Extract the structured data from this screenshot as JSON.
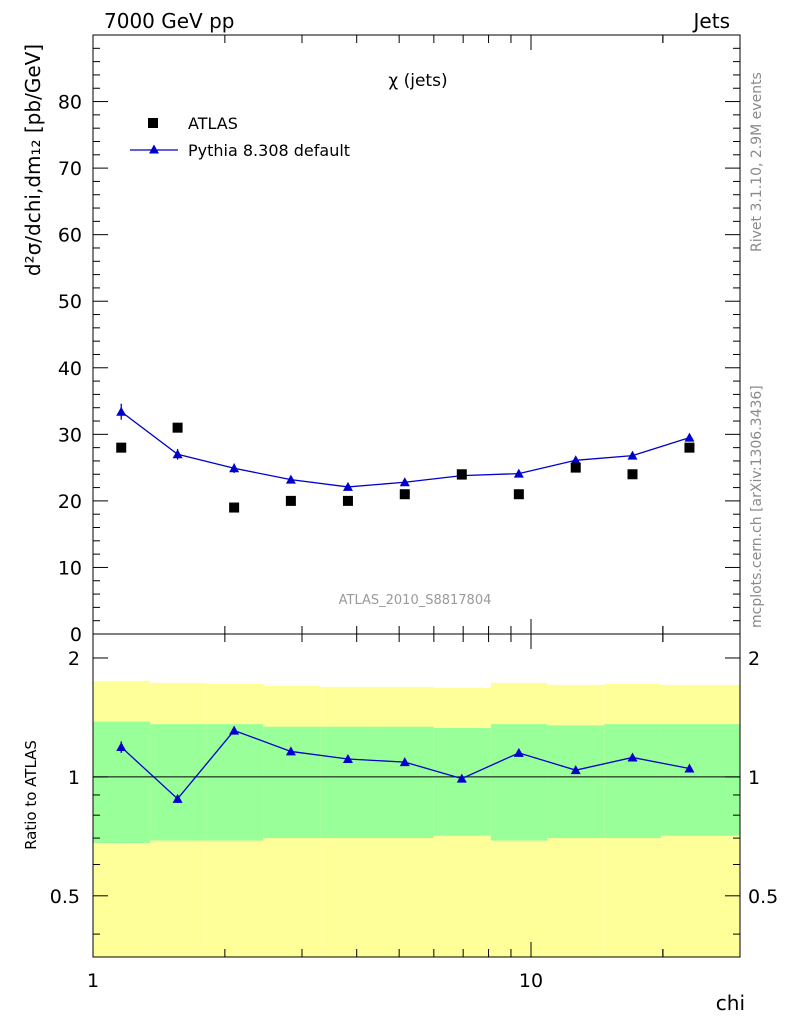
{
  "header": {
    "left": "7000 GeV pp",
    "right": "Jets"
  },
  "side_text": {
    "top": "Rivet 3.1.10,  2.9M events",
    "bottom": "mcplots.cern.ch [arXiv:1306.3436]"
  },
  "watermark": "ATLAS_2010_S8817804",
  "plot_title": "χ (jets)",
  "ylabel_main": "d²σ/dchi,dm₁₂ [pb/GeV]",
  "ylabel_ratio": "Ratio to ATLAS",
  "xlabel": "chi",
  "legend": [
    {
      "label": "ATLAS",
      "marker": "square",
      "color": "#000000"
    },
    {
      "label": "Pythia 8.308 default",
      "marker": "triangle",
      "color": "#0000cc"
    }
  ],
  "colors": {
    "data": "#000000",
    "mc": "#0000cc",
    "band_inner": "#99ff99",
    "band_outer": "#ffff99"
  },
  "chart_data": [
    {
      "type": "scatter",
      "panel": "main",
      "x_scale": "log",
      "xlim": [
        1,
        30
      ],
      "ylim": [
        0,
        90
      ],
      "x_ticks": [
        "1",
        "10"
      ],
      "y_ticks": [
        "0",
        "10",
        "20",
        "30",
        "40",
        "50",
        "60",
        "70",
        "80"
      ],
      "x": [
        1.16,
        1.56,
        2.1,
        2.83,
        3.82,
        5.15,
        6.95,
        9.38,
        12.65,
        17.05,
        23.0
      ],
      "series": [
        {
          "name": "ATLAS",
          "values": [
            28,
            31,
            19,
            20,
            20,
            21,
            24,
            21,
            25,
            24,
            28
          ]
        },
        {
          "name": "Pythia 8.308 default",
          "values": [
            33.4,
            27.0,
            24.9,
            23.2,
            22.1,
            22.8,
            23.8,
            24.1,
            26.1,
            26.8,
            29.5
          ],
          "errors": [
            1.2,
            0.8,
            0.7,
            0.5,
            0.4,
            0.4,
            0.4,
            0.4,
            0.4,
            0.4,
            0.5
          ]
        }
      ]
    },
    {
      "type": "line",
      "panel": "ratio",
      "x_scale": "log",
      "xlim": [
        1,
        30
      ],
      "ylim": [
        0.35,
        2.3
      ],
      "y_ticks": [
        "0.5",
        "1",
        "2"
      ],
      "x": [
        1.16,
        1.56,
        2.1,
        2.83,
        3.82,
        5.15,
        6.95,
        9.38,
        12.65,
        17.05,
        23.0
      ],
      "bin_edges": [
        1.0,
        1.35,
        1.82,
        2.45,
        3.3,
        4.45,
        6.0,
        8.1,
        10.9,
        14.7,
        19.8,
        30.0
      ],
      "series": [
        {
          "name": "Pythia 8.308 default",
          "values": [
            1.19,
            0.88,
            1.31,
            1.16,
            1.11,
            1.09,
            0.99,
            1.15,
            1.04,
            1.12,
            1.05
          ],
          "errors": [
            0.04,
            0.02,
            0.03,
            0.02,
            0.01,
            0.01,
            0.01,
            0.01,
            0.01,
            0.01,
            0.01
          ]
        }
      ],
      "band_inner": {
        "lo": [
          0.68,
          0.69,
          0.69,
          0.7,
          0.7,
          0.7,
          0.71,
          0.69,
          0.7,
          0.7,
          0.71
        ],
        "hi": [
          1.38,
          1.36,
          1.36,
          1.34,
          1.34,
          1.34,
          1.33,
          1.36,
          1.35,
          1.36,
          1.36
        ]
      },
      "band_outer": {
        "lo": [
          0.35,
          0.35,
          0.35,
          0.35,
          0.35,
          0.35,
          0.35,
          0.35,
          0.35,
          0.35,
          0.35
        ],
        "hi": [
          1.75,
          1.73,
          1.72,
          1.7,
          1.69,
          1.69,
          1.68,
          1.73,
          1.71,
          1.72,
          1.71
        ]
      }
    }
  ]
}
